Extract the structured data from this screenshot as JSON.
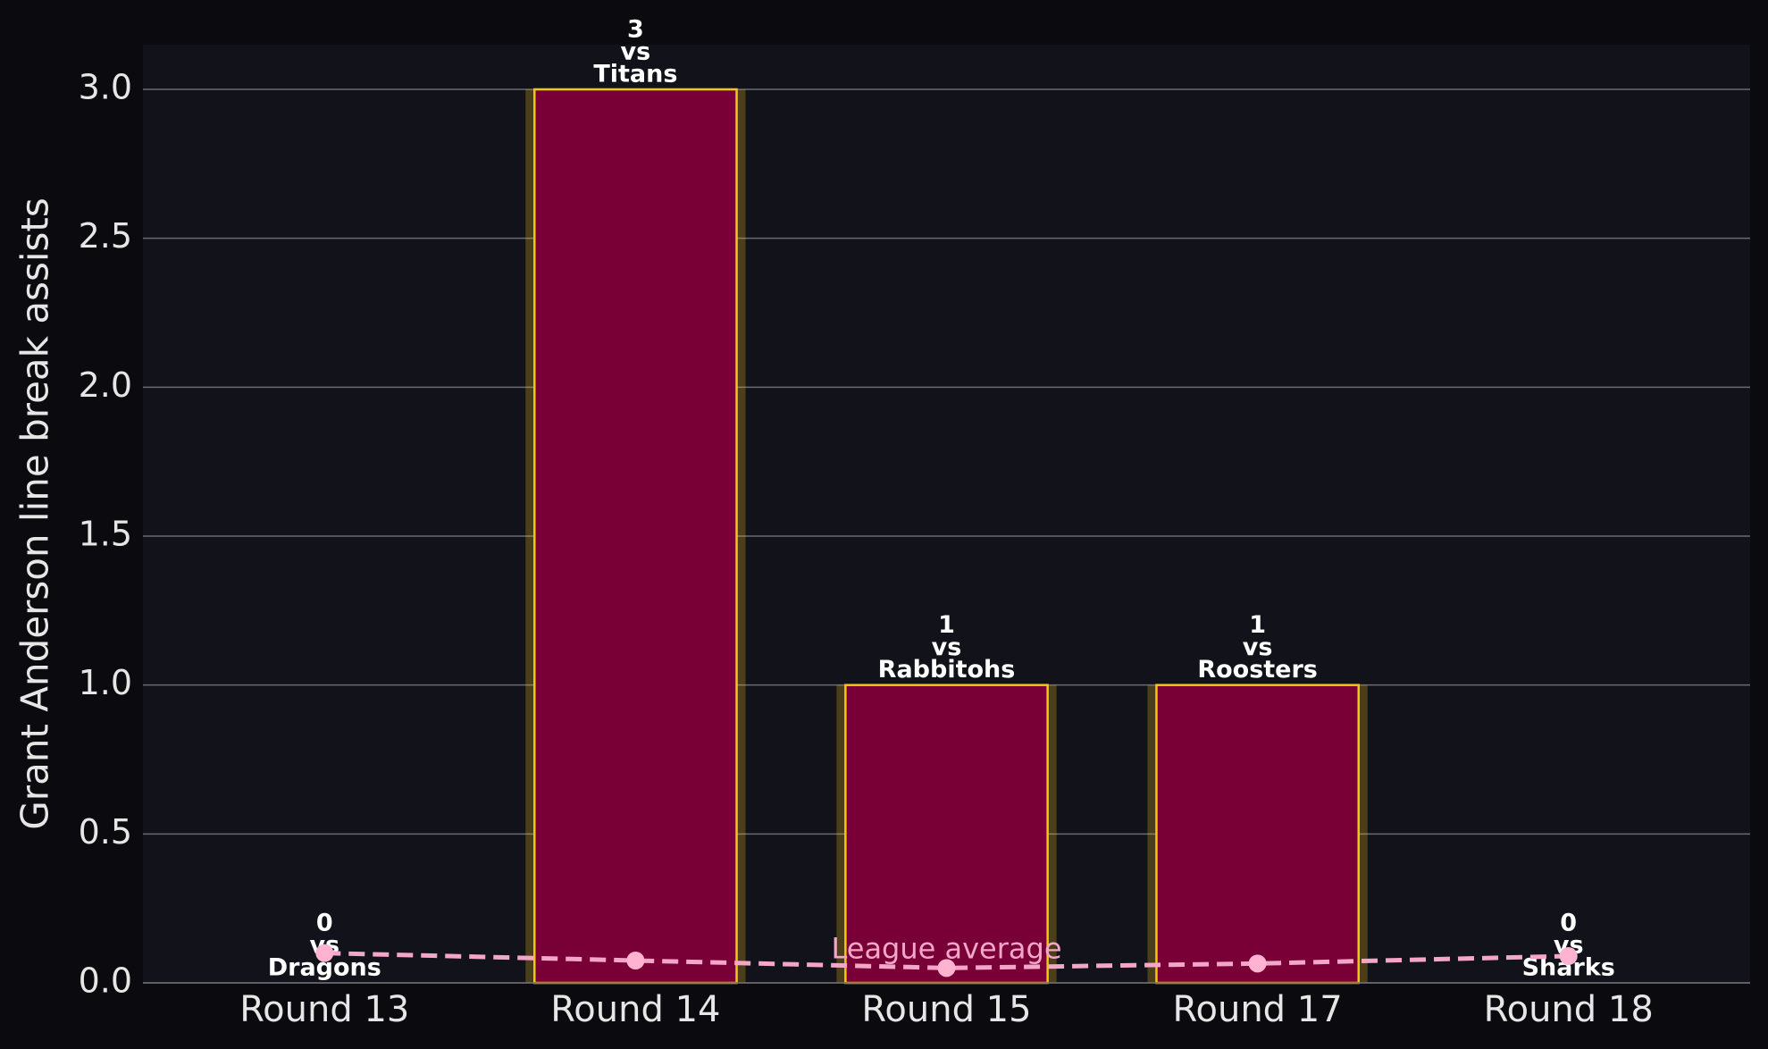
{
  "chart_data": {
    "type": "bar",
    "y_label": "Grant Anderson line break assists",
    "categories": [
      "Round 13",
      "Round 14",
      "Round 15",
      "Round 17",
      "Round 18"
    ],
    "values": [
      0,
      3,
      1,
      1,
      0
    ],
    "label_connector": "vs",
    "opponents": [
      "Dragons",
      "Titans",
      "Rabbitohs",
      "Roosters",
      "Sharks"
    ],
    "color": "#780036",
    "edge_color": "#f5c518",
    "series": [
      {
        "name": "League average",
        "color": "#f4a6c8",
        "values": [
          0.1,
          0.075,
          0.05,
          0.065,
          0.09
        ]
      }
    ],
    "ylim": [
      0,
      3.15
    ],
    "yticks": [
      {
        "value": 0,
        "label": "0.0"
      },
      0.5,
      {
        "value": 1,
        "label": "1.0"
      },
      1.5,
      {
        "value": 2,
        "label": "2.0"
      },
      2.5,
      {
        "value": 3,
        "label": "3.0"
      }
    ],
    "grid": true
  }
}
